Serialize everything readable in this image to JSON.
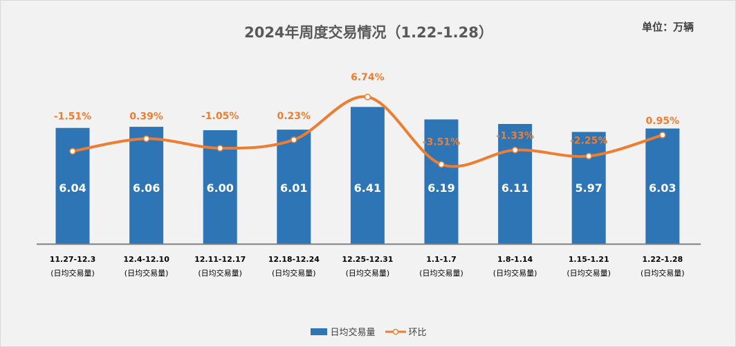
{
  "chart_data": {
    "type": "bar",
    "title": "2024年周度交易情况（1.22-1.28）",
    "unit_label": "单位：万辆",
    "categories": [
      "11.27-12.3",
      "12.4-12.10",
      "12.11-12.17",
      "12.18-12.24",
      "12.25-12.31",
      "1.1-1.7",
      "1.8-1.14",
      "1.15-1.21",
      "1.22-1.28"
    ],
    "category_sub": "(日均交易量)",
    "series": [
      {
        "name": "日均交易量",
        "type": "bar",
        "color": "#2e75b6",
        "values": [
          6.04,
          6.06,
          6.0,
          6.01,
          6.41,
          6.19,
          6.11,
          5.97,
          6.03
        ],
        "labels": [
          "6.04",
          "6.06",
          "6.00",
          "6.01",
          "6.41",
          "6.19",
          "6.11",
          "5.97",
          "6.03"
        ]
      },
      {
        "name": "环比",
        "type": "line",
        "color": "#ed7d31",
        "values": [
          -1.51,
          0.39,
          -1.05,
          0.23,
          6.74,
          -3.51,
          -1.33,
          -2.25,
          0.95
        ],
        "labels": [
          "-1.51%",
          "0.39%",
          "-1.05%",
          "0.23%",
          "6.74%",
          "-3.51%",
          "-1.33%",
          "-2.25%",
          "0.95%"
        ]
      }
    ],
    "ylim": [
      4,
      7
    ],
    "y2lim": [
      -15,
      21
    ]
  }
}
